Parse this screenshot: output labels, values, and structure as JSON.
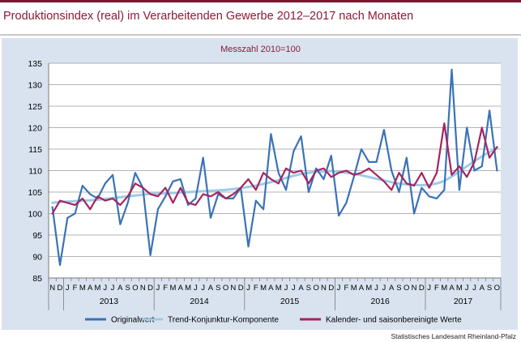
{
  "header": {
    "title": "Produktionsindex (real) im Verarbeitenden Gewerbe 2012–2017 nach Monaten"
  },
  "footer": {
    "source": "Statistisches Landesamt Rheinland-Pfalz"
  },
  "colors": {
    "brand": "#7b1530",
    "title": "#8b1a38",
    "panel": "#d9e3f0",
    "original": "#3a72b8",
    "trend": "#9ecbe6",
    "seasonal": "#a5245f"
  },
  "chart_data": {
    "type": "line",
    "title": "",
    "subtitle": "Messzahl 2010=100",
    "xlabel": "",
    "ylabel": "",
    "ylim": [
      85,
      135
    ],
    "yticks": [
      85,
      90,
      95,
      100,
      105,
      110,
      115,
      120,
      125,
      130,
      135
    ],
    "grid": true,
    "legend_position": "bottom",
    "x": [
      "N",
      "D",
      "J",
      "F",
      "M",
      "A",
      "M",
      "J",
      "J",
      "A",
      "S",
      "O",
      "N",
      "D",
      "J",
      "F",
      "M",
      "A",
      "M",
      "J",
      "J",
      "A",
      "S",
      "O",
      "N",
      "D",
      "J",
      "F",
      "M",
      "A",
      "M",
      "J",
      "J",
      "A",
      "S",
      "O",
      "N",
      "D",
      "J",
      "F",
      "M",
      "A",
      "M",
      "J",
      "J",
      "A",
      "S",
      "O",
      "N",
      "D",
      "J",
      "F",
      "M",
      "A",
      "M",
      "J",
      "J",
      "A",
      "S",
      "O"
    ],
    "year_groups": [
      {
        "label": "2013",
        "start": 2,
        "end": 13
      },
      {
        "label": "2014",
        "start": 14,
        "end": 25
      },
      {
        "label": "2015",
        "start": 26,
        "end": 37
      },
      {
        "label": "2016",
        "start": 38,
        "end": 49
      },
      {
        "label": "2017",
        "start": 50,
        "end": 59
      }
    ],
    "series": [
      {
        "name": "Originalwert",
        "color": "#3a72b8",
        "values": [
          101.5,
          88,
          99,
          100,
          106.5,
          104.5,
          103.5,
          107,
          109,
          97.5,
          102.5,
          109.5,
          106,
          90.3,
          101,
          104,
          107.5,
          108,
          102,
          103.5,
          113,
          99,
          104.5,
          103.5,
          103.5,
          106,
          92.3,
          103,
          101,
          118.5,
          109.5,
          105.5,
          114.5,
          118,
          105,
          110.5,
          108,
          113.5,
          99.5,
          102.5,
          108.5,
          115,
          112,
          112,
          119.5,
          110,
          105,
          113,
          100,
          106,
          104,
          103.5,
          105.5,
          133.5,
          105.5,
          120,
          110,
          111,
          124,
          110
        ]
      },
      {
        "name": "Trend-Konjunktur-Komponente",
        "color": "#9ecbe6",
        "values": [
          102.5,
          102.7,
          102.8,
          102.9,
          103.0,
          103.1,
          103.2,
          103.4,
          103.6,
          103.8,
          104.0,
          104.2,
          104.4,
          104.6,
          104.6,
          104.7,
          104.8,
          104.9,
          105.0,
          105.1,
          105.2,
          105.3,
          105.4,
          105.5,
          105.7,
          105.9,
          106.2,
          106.5,
          106.9,
          107.3,
          107.8,
          108.3,
          108.8,
          109.2,
          109.5,
          109.7,
          109.8,
          109.9,
          109.7,
          109.5,
          109.2,
          108.9,
          108.5,
          108.1,
          107.7,
          107.3,
          107.0,
          106.8,
          106.7,
          106.6,
          106.7,
          107.0,
          107.6,
          108.6,
          109.8,
          111.0,
          112.2,
          113.3,
          114.3,
          115.2
        ]
      },
      {
        "name": "Kalender- und saisonbereinigte Werte",
        "color": "#a5245f",
        "values": [
          100,
          103,
          102.5,
          102,
          103.5,
          101,
          104,
          103,
          103.5,
          102,
          104,
          107,
          106,
          104.5,
          104,
          106,
          102.5,
          106,
          102.5,
          102,
          104.5,
          104,
          105,
          103.5,
          104.5,
          106,
          108,
          105.5,
          109.5,
          108,
          107,
          110.5,
          109.5,
          110,
          107,
          110,
          110.5,
          108.5,
          109.5,
          110,
          109,
          109.5,
          110.5,
          109,
          107.5,
          105.5,
          109.5,
          107,
          106.5,
          109.5,
          106,
          109.5,
          121,
          109,
          111,
          108.5,
          112,
          120,
          113,
          115.5
        ]
      }
    ]
  }
}
